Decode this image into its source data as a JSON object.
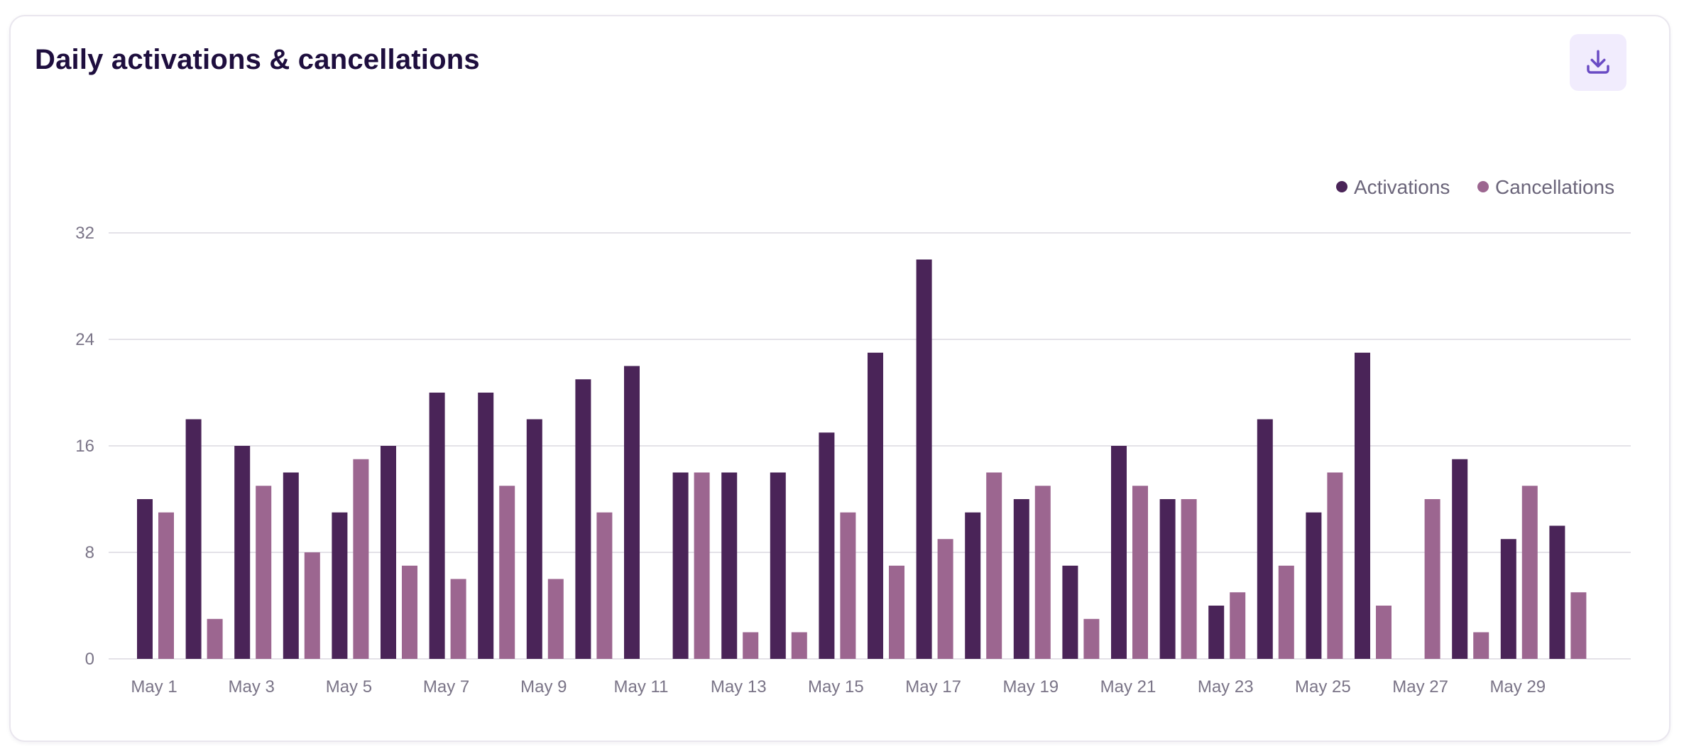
{
  "card": {
    "title": "Daily activations & cancellations",
    "download_icon": "download-icon"
  },
  "colors": {
    "activations": "#4a2458",
    "cancellations": "#9c6690",
    "title": "#1e0e3e",
    "accent": "#6a4bc4",
    "button_bg": "#f1ecfd",
    "grid": "#e4e2e8"
  },
  "chart_data": {
    "type": "bar",
    "title": "Daily activations & cancellations",
    "xlabel": "",
    "ylabel": "",
    "ylim": [
      0,
      32
    ],
    "yticks": [
      0,
      8,
      16,
      24,
      32
    ],
    "grid": true,
    "legend_position": "top-right",
    "categories": [
      "May 1",
      "May 2",
      "May 3",
      "May 4",
      "May 5",
      "May 6",
      "May 7",
      "May 8",
      "May 9",
      "May 10",
      "May 11",
      "May 12",
      "May 13",
      "May 14",
      "May 15",
      "May 16",
      "May 17",
      "May 18",
      "May 19",
      "May 20",
      "May 21",
      "May 22",
      "May 23",
      "May 24",
      "May 25",
      "May 26",
      "May 27",
      "May 28",
      "May 29",
      "May 30"
    ],
    "tick_labels": [
      "May 1",
      "May 3",
      "May 5",
      "May 7",
      "May 9",
      "May 11",
      "May 13",
      "May 15",
      "May 17",
      "May 19",
      "May 21",
      "May 23",
      "May 25",
      "May 27",
      "May 29"
    ],
    "series": [
      {
        "name": "Activations",
        "values": [
          12,
          18,
          16,
          14,
          11,
          16,
          20,
          20,
          18,
          21,
          22,
          14,
          14,
          14,
          17,
          23,
          30,
          11,
          12,
          7,
          16,
          12,
          4,
          18,
          11,
          23,
          0,
          15,
          9,
          10
        ]
      },
      {
        "name": "Cancellations",
        "values": [
          11,
          3,
          13,
          8,
          15,
          7,
          6,
          13,
          6,
          11,
          0,
          14,
          2,
          2,
          11,
          7,
          9,
          14,
          13,
          3,
          13,
          12,
          5,
          7,
          14,
          4,
          12,
          2,
          13,
          5
        ]
      }
    ]
  }
}
